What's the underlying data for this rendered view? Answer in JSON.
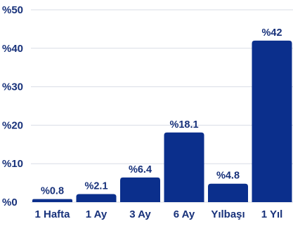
{
  "chart_data": {
    "type": "bar",
    "categories": [
      "1 Hafta",
      "1 Ay",
      "3 Ay",
      "6 Ay",
      "Yılbaşı",
      "1 Yıl"
    ],
    "values": [
      0.8,
      2.1,
      6.4,
      18.1,
      4.8,
      42
    ],
    "data_labels": [
      "%0.8",
      "%2.1",
      "%6.4",
      "%18.1",
      "%4.8",
      "%42"
    ],
    "y_ticks": [
      {
        "value": 0,
        "label": "%0"
      },
      {
        "value": 10,
        "label": "%10"
      },
      {
        "value": 20,
        "label": "%20"
      },
      {
        "value": 30,
        "label": "%30"
      },
      {
        "value": 40,
        "label": "%40"
      },
      {
        "value": 50,
        "label": "%50"
      }
    ],
    "ylim": [
      0,
      50
    ],
    "grid": true,
    "title": "",
    "xlabel": "",
    "ylabel": "",
    "bar_color": "#0b2f8c",
    "grid_color": "#d9dde6",
    "text_color": "#17317a"
  }
}
